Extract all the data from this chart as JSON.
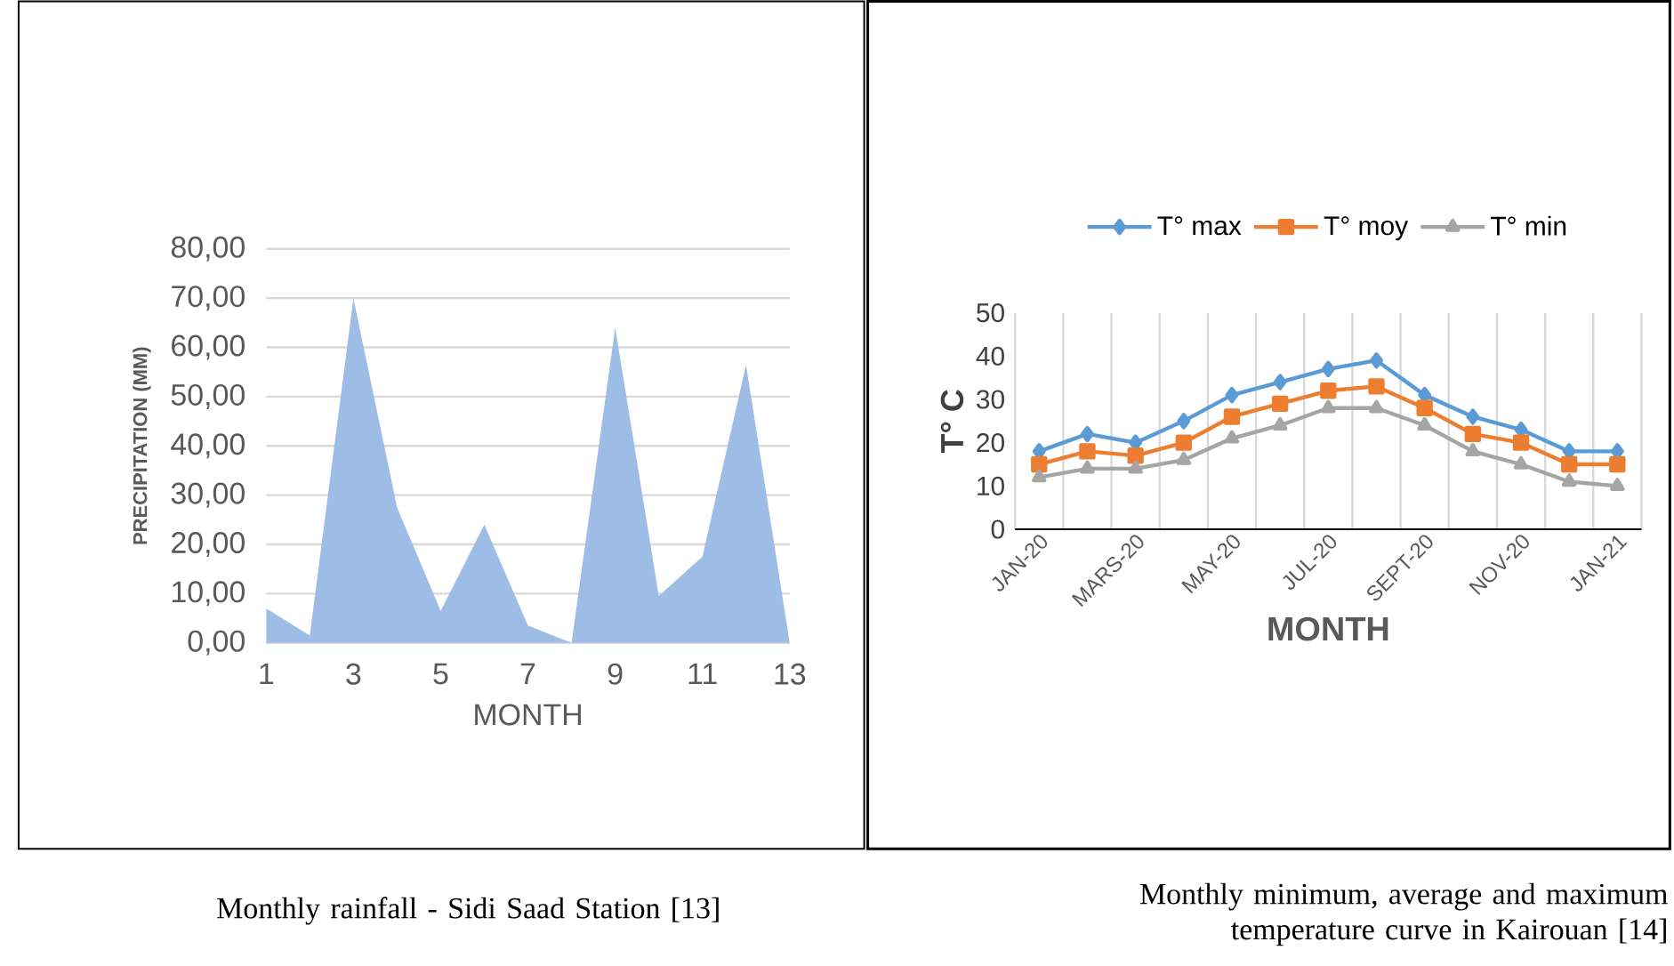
{
  "chart_data": [
    {
      "type": "area",
      "xlabel": "MONTH",
      "ylabel": "PRECIPITATION (MM)",
      "color": "#9dbde6",
      "x": [
        1,
        2,
        3,
        4,
        5,
        6,
        7,
        8,
        9,
        10,
        11,
        12,
        13
      ],
      "values": [
        7,
        1.5,
        70,
        27.5,
        6.5,
        24,
        3.5,
        0,
        64,
        9.5,
        17.5,
        56.5,
        0
      ],
      "xlim": [
        1,
        13
      ],
      "xticks": [
        1,
        3,
        5,
        7,
        9,
        11,
        13
      ],
      "ylim": [
        0,
        80
      ],
      "yticks": [
        {
          "value": 0,
          "label": "0,00"
        },
        {
          "value": 10,
          "label": "10,00"
        },
        {
          "value": 20,
          "label": "20,00"
        },
        {
          "value": 30,
          "label": "30,00"
        },
        {
          "value": 40,
          "label": "40,00"
        },
        {
          "value": 50,
          "label": "50,00"
        },
        {
          "value": 60,
          "label": "60,00"
        },
        {
          "value": 70,
          "label": "70,00"
        },
        {
          "value": 80,
          "label": "80,00"
        }
      ],
      "grid": "y",
      "annotations": [
        "Monthly rainfall - Sidi Saad Station [13]"
      ]
    },
    {
      "type": "line",
      "xlabel": "MONTH",
      "ylabel": "T° C",
      "categories": [
        "JAN-20",
        null,
        "MARS-20",
        null,
        "MAY-20",
        null,
        "JUL-20",
        null,
        "SEPT-20",
        null,
        "NOV-20",
        null,
        "JAN-21"
      ],
      "series": [
        {
          "name": "T° max",
          "color": "#5b9bd5",
          "marker": "diamond",
          "values": [
            18,
            22,
            20,
            25,
            31,
            34,
            37,
            39,
            31,
            26,
            23,
            18,
            18
          ]
        },
        {
          "name": "T° moy",
          "color": "#ed7d31",
          "marker": "square",
          "values": [
            15,
            18,
            17,
            20,
            26,
            29,
            32,
            33,
            28,
            22,
            20,
            15,
            15
          ]
        },
        {
          "name": "T° min",
          "color": "#a5a5a5",
          "marker": "triangle",
          "values": [
            12,
            14,
            14,
            16,
            21,
            24,
            28,
            28,
            24,
            18,
            15,
            11,
            10
          ]
        }
      ],
      "ylim": [
        0,
        50
      ],
      "yticks": [
        0,
        10,
        20,
        30,
        40,
        50
      ],
      "grid": "x",
      "legend": "top",
      "annotations": [
        "Monthly minimum, average and maximum temperature curve in Kairouan [14]"
      ]
    }
  ]
}
